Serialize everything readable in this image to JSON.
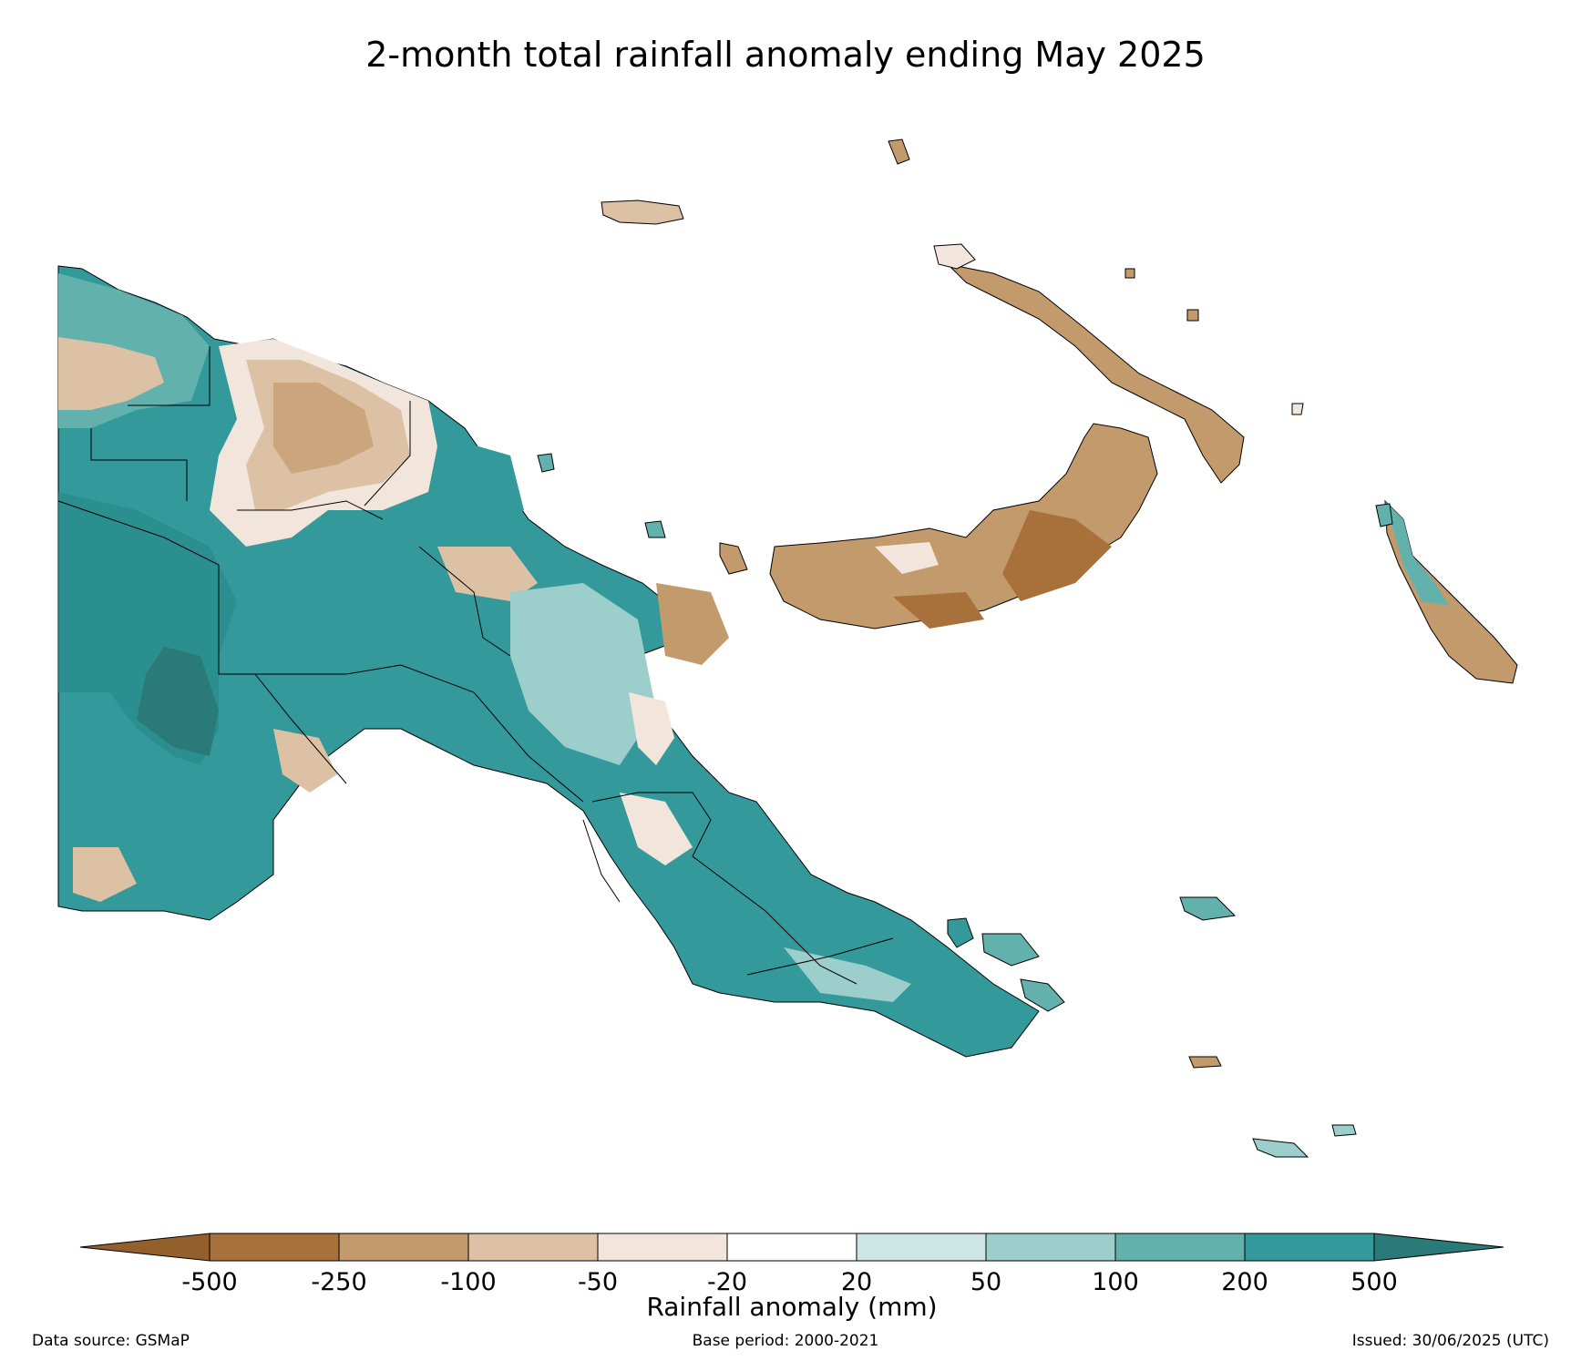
{
  "title": "2-month total rainfall anomaly ending May 2025",
  "colorbar": {
    "title": "Rainfall anomaly (mm)",
    "ticks": [
      "-500",
      "-250",
      "-100",
      "-50",
      "-20",
      "20",
      "50",
      "100",
      "200",
      "500"
    ],
    "colors": [
      "#a8703a",
      "#c39a6b",
      "#dcc1a5",
      "#f2e6dc",
      "#ffffff",
      "#cbe6e4",
      "#9ccfcb",
      "#62b1ad",
      "#33999a"
    ],
    "extend_low": "#93602d",
    "extend_high": "#2a7a79"
  },
  "footer": {
    "source": "Data source: GSMaP",
    "base_period": "Base period: 2000-2021",
    "issued": "Issued: 30/06/2025 (UTC)"
  }
}
